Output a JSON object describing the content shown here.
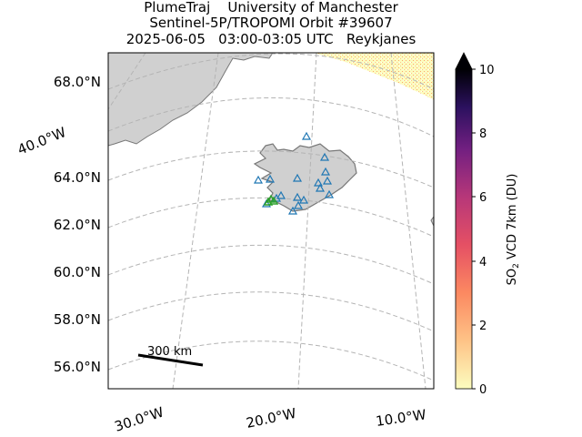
{
  "title": {
    "line1": "PlumeTraj    University of Manchester",
    "line2": "Sentinel-5P/TROPOMI Orbit #39607",
    "line3": "2025-06-05   03:00-03:05 UTC   Reykjanes"
  },
  "map": {
    "lat_labels": [
      "68.0°N",
      "64.0°N",
      "62.0°N",
      "60.0°N",
      "58.0°N",
      "56.0°N"
    ],
    "lon_labels": [
      "30.0°W",
      "20.0°W",
      "10.0°W"
    ],
    "side_label": "40.0°W",
    "scalebar_label": "300 km",
    "colors": {
      "land": "#d0d0d0",
      "coast": "#777777",
      "grid": "#b4b4b4",
      "triangle": "#1f77b4",
      "target": "#2ca02c"
    }
  },
  "colorbar": {
    "label_main": "SO",
    "label_sub": "2",
    "label_rest": " VCD 7km (DU)",
    "ticks": [
      "0",
      "2",
      "4",
      "6",
      "8",
      "10"
    ],
    "min": 0,
    "max": 10,
    "extend": "max",
    "colormap": "magma_r"
  }
}
